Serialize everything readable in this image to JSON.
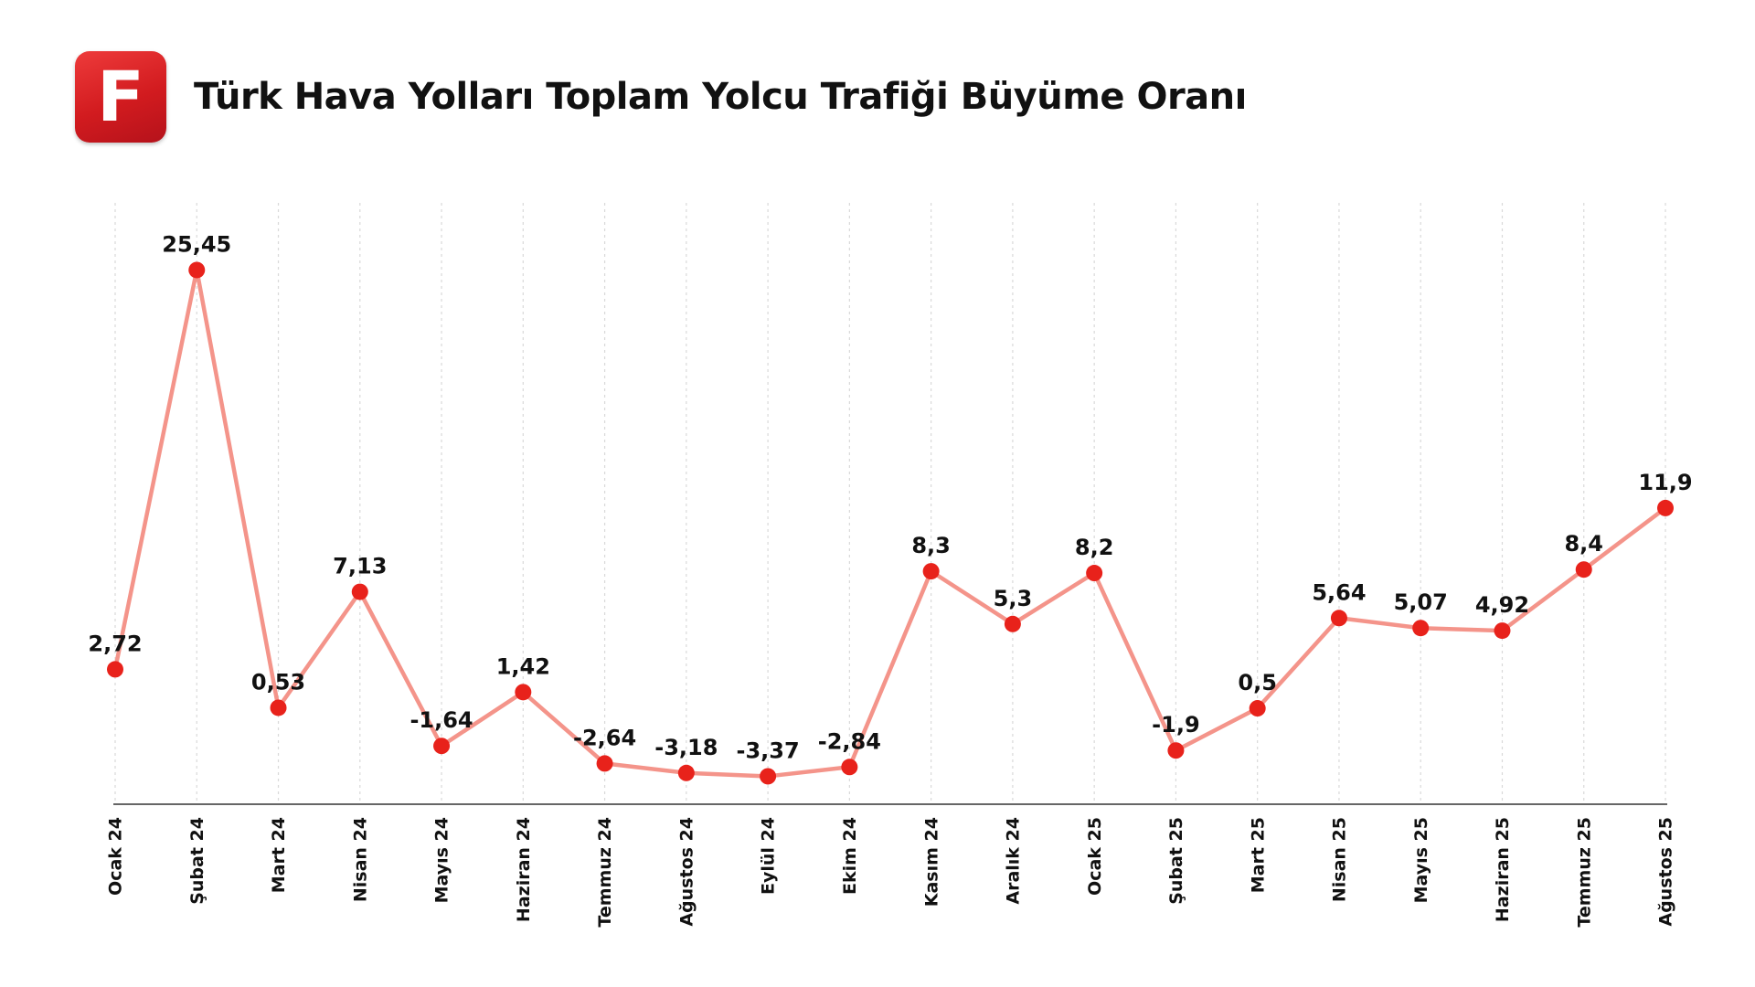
{
  "header": {
    "logo_letter": "F",
    "title": "Türk Hava Yolları Toplam Yolcu Trafiği Büyüme Oranı"
  },
  "colors": {
    "line": "#f4948a",
    "marker": "#e8221b",
    "grid": "#d9d9d9",
    "axis": "#333333",
    "logo": "#d9201f"
  },
  "chart_data": {
    "type": "line",
    "title": "Türk Hava Yolları Toplam Yolcu Trafiği Büyüme Oranı",
    "xlabel": "",
    "ylabel": "",
    "grid": "vertical dashed",
    "legend": "none",
    "ylim": [
      -6,
      30
    ],
    "categories": [
      "Ocak 24",
      "Şubat 24",
      "Mart 24",
      "Nisan 24",
      "Mayıs 24",
      "Haziran 24",
      "Temmuz 24",
      "Ağustos 24",
      "Eylül 24",
      "Ekim 24",
      "Kasım 24",
      "Aralık 24",
      "Ocak 25",
      "Şubat 25",
      "Mart 25",
      "Nisan 25",
      "Mayıs 25",
      "Haziran 25",
      "Temmuz 25",
      "Ağustos 25"
    ],
    "values": [
      2.72,
      25.45,
      0.53,
      7.13,
      -1.64,
      1.42,
      -2.64,
      -3.18,
      -3.37,
      -2.84,
      8.3,
      5.3,
      8.2,
      -1.9,
      0.5,
      5.64,
      5.07,
      4.92,
      8.4,
      11.9
    ],
    "labels": [
      "2,72",
      "25,45",
      "0,53",
      "7,13",
      "-1,64",
      "1,42",
      "-2,64",
      "-3,18",
      "-3,37",
      "-2,84",
      "8,3",
      "5,3",
      "8,2",
      "-1,9",
      "0,5",
      "5,64",
      "5,07",
      "4,92",
      "8,4",
      "11,9"
    ]
  }
}
